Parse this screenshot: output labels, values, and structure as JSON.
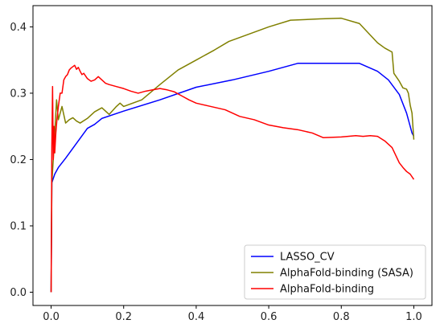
{
  "chart_data": {
    "type": "line",
    "title": "",
    "xlabel": "",
    "ylabel": "",
    "xlim": [
      -0.05,
      1.05
    ],
    "ylim": [
      -0.02,
      0.432
    ],
    "x_ticks": [
      0.0,
      0.2,
      0.4,
      0.6,
      0.8,
      1.0
    ],
    "x_tick_labels": [
      "0.0",
      "0.2",
      "0.4",
      "0.6",
      "0.8",
      "1.0"
    ],
    "y_ticks": [
      0.0,
      0.1,
      0.2,
      0.3,
      0.4
    ],
    "y_tick_labels": [
      "0.0",
      "0.1",
      "0.2",
      "0.3",
      "0.4"
    ],
    "grid": false,
    "legend_position": "bottom-right",
    "series": [
      {
        "name": "LASSO_CV",
        "color": "#0000ff",
        "x": [
          0.0,
          0.002,
          0.005,
          0.01,
          0.02,
          0.04,
          0.06,
          0.08,
          0.1,
          0.12,
          0.14,
          0.2,
          0.3,
          0.4,
          0.5,
          0.6,
          0.68,
          0.75,
          0.85,
          0.9,
          0.93,
          0.96,
          0.98,
          0.99,
          0.995,
          1.0
        ],
        "y": [
          0.0,
          0.165,
          0.17,
          0.178,
          0.188,
          0.202,
          0.217,
          0.232,
          0.247,
          0.253,
          0.262,
          0.273,
          0.29,
          0.309,
          0.32,
          0.333,
          0.345,
          0.345,
          0.345,
          0.333,
          0.32,
          0.298,
          0.27,
          0.25,
          0.24,
          0.235
        ]
      },
      {
        "name": "AlphaFold-binding (SASA)",
        "color": "#808000",
        "x": [
          0.0,
          0.002,
          0.006,
          0.01,
          0.015,
          0.02,
          0.025,
          0.03,
          0.04,
          0.05,
          0.06,
          0.07,
          0.08,
          0.1,
          0.12,
          0.14,
          0.16,
          0.18,
          0.19,
          0.2,
          0.25,
          0.3,
          0.35,
          0.4,
          0.45,
          0.49,
          0.55,
          0.6,
          0.66,
          0.74,
          0.8,
          0.85,
          0.9,
          0.92,
          0.94,
          0.945,
          0.96,
          0.97,
          0.98,
          0.985,
          0.99,
          0.995,
          1.0
        ],
        "y": [
          0.0,
          0.165,
          0.2,
          0.24,
          0.29,
          0.26,
          0.27,
          0.28,
          0.255,
          0.26,
          0.263,
          0.258,
          0.255,
          0.262,
          0.272,
          0.278,
          0.268,
          0.28,
          0.285,
          0.28,
          0.29,
          0.313,
          0.335,
          0.35,
          0.365,
          0.378,
          0.39,
          0.4,
          0.41,
          0.412,
          0.413,
          0.405,
          0.376,
          0.368,
          0.362,
          0.33,
          0.318,
          0.308,
          0.306,
          0.3,
          0.282,
          0.27,
          0.23
        ]
      },
      {
        "name": "AlphaFold-binding",
        "color": "#ff0000",
        "x": [
          0.0,
          0.002,
          0.004,
          0.006,
          0.008,
          0.01,
          0.013,
          0.016,
          0.02,
          0.025,
          0.03,
          0.035,
          0.04,
          0.045,
          0.05,
          0.055,
          0.06,
          0.065,
          0.07,
          0.075,
          0.08,
          0.085,
          0.09,
          0.1,
          0.11,
          0.12,
          0.13,
          0.14,
          0.15,
          0.16,
          0.18,
          0.2,
          0.22,
          0.24,
          0.26,
          0.28,
          0.3,
          0.32,
          0.34,
          0.36,
          0.38,
          0.4,
          0.44,
          0.48,
          0.52,
          0.56,
          0.6,
          0.64,
          0.68,
          0.72,
          0.75,
          0.8,
          0.84,
          0.86,
          0.88,
          0.9,
          0.92,
          0.94,
          0.96,
          0.97,
          0.98,
          0.99,
          1.0
        ],
        "y": [
          0.0,
          0.22,
          0.31,
          0.2,
          0.25,
          0.21,
          0.24,
          0.26,
          0.28,
          0.3,
          0.3,
          0.32,
          0.325,
          0.328,
          0.335,
          0.338,
          0.34,
          0.342,
          0.336,
          0.339,
          0.333,
          0.328,
          0.33,
          0.322,
          0.318,
          0.32,
          0.325,
          0.32,
          0.315,
          0.313,
          0.31,
          0.307,
          0.303,
          0.3,
          0.303,
          0.305,
          0.307,
          0.305,
          0.302,
          0.296,
          0.29,
          0.285,
          0.28,
          0.275,
          0.265,
          0.26,
          0.252,
          0.248,
          0.245,
          0.24,
          0.233,
          0.234,
          0.236,
          0.235,
          0.236,
          0.235,
          0.228,
          0.218,
          0.195,
          0.188,
          0.182,
          0.178,
          0.17
        ]
      }
    ]
  }
}
